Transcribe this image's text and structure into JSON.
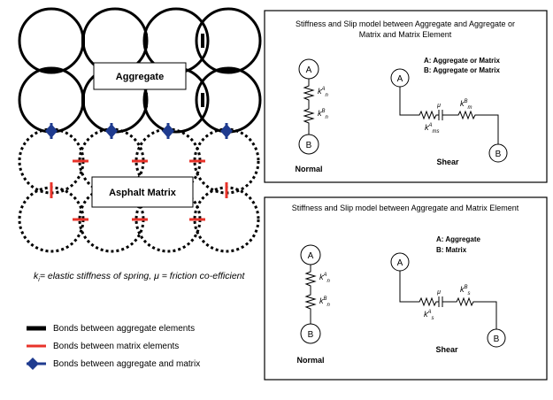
{
  "left": {
    "aggregate_label": "Aggregate",
    "matrix_label": "Asphalt Matrix",
    "formula_subscript": "i",
    "formula_rest": "= elastic stiffness of spring, μ = friction co-efficient",
    "formula_k": "k"
  },
  "legend": {
    "items": [
      {
        "label": "Bonds between aggregate elements",
        "color": "#000000",
        "icon": "black-bar"
      },
      {
        "label": "Bonds between matrix elements",
        "color": "#e8332a",
        "icon": "red-bar"
      },
      {
        "label": "Bonds between aggregate and matrix",
        "color": "#1f3b8f",
        "icon": "blue-diamond-bar"
      }
    ]
  },
  "panel_top": {
    "title_line1": "Stiffness and Slip model between Aggregate and Aggregate or",
    "title_line2": "Matrix and Matrix Element",
    "node_a": "A",
    "node_b": "B",
    "key_a": "A: Aggregate or Matrix",
    "key_b": "B: Aggregate or Matrix",
    "normal_label": "Normal",
    "shear_label": "Shear",
    "mu": "μ",
    "k_normal_a": "k",
    "k_normal_a_sup": "A",
    "k_normal_a_sub": "n",
    "k_normal_b": "k",
    "k_normal_b_sup": "B",
    "k_normal_b_sub": "n",
    "k_shear_a": "k",
    "k_shear_a_sup": "A",
    "k_shear_a_sub": "ms",
    "k_shear_b": "k",
    "k_shear_b_sup": "B",
    "k_shear_b_sub": "m"
  },
  "panel_bottom": {
    "title": "Stiffness and Slip model between Aggregate and Matrix Element",
    "node_a": "A",
    "node_b": "B",
    "key_a": "A: Aggregate",
    "key_b": "B: Matrix",
    "normal_label": "Normal",
    "shear_label": "Shear",
    "mu": "μ",
    "k_normal_a": "k",
    "k_normal_a_sup": "A",
    "k_normal_a_sub": "n",
    "k_normal_b": "k",
    "k_normal_b_sup": "B",
    "k_normal_b_sub": "n",
    "k_shear_a": "k",
    "k_shear_a_sup": "A",
    "k_shear_a_sub": "s",
    "k_shear_b": "k",
    "k_shear_b_sup": "B",
    "k_shear_b_sub": "s"
  },
  "colors": {
    "aggregate_bond": "#000000",
    "matrix_bond": "#e8332a",
    "interface_bond": "#1f3b8f"
  }
}
